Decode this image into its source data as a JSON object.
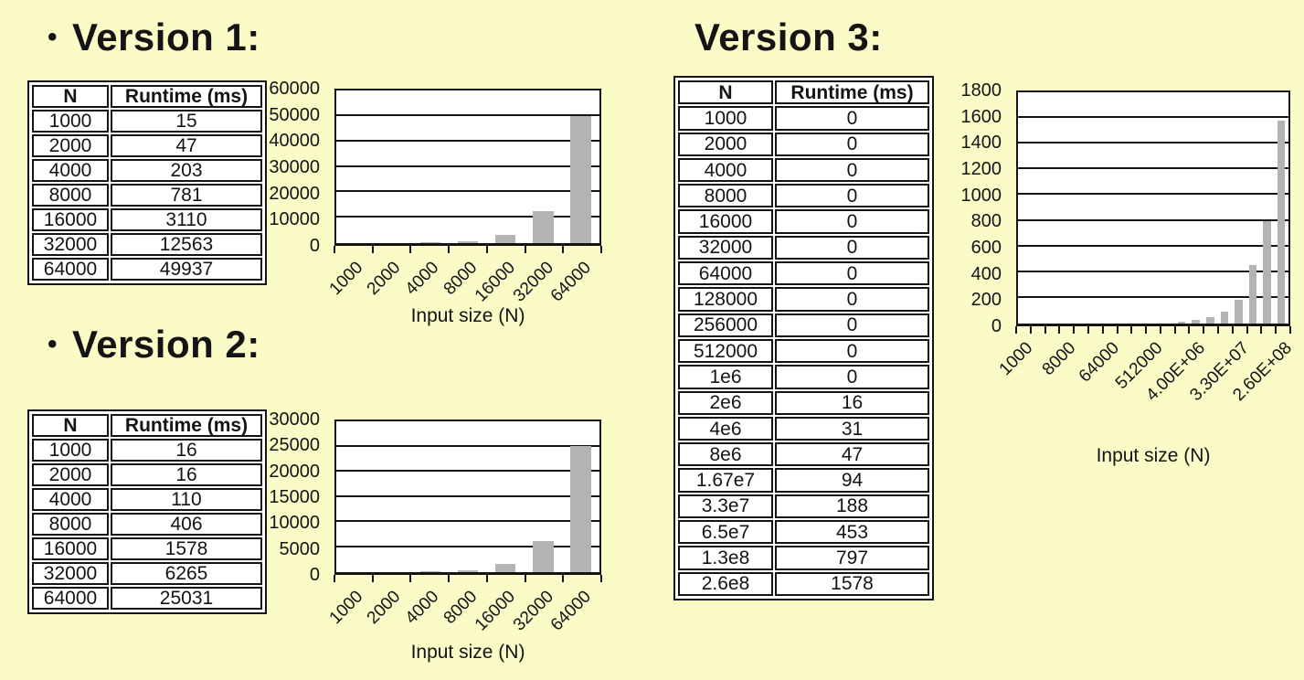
{
  "page": {
    "background_color": "#FBFBC8",
    "bar_color": "#b3b3b3",
    "line_color": "#141414"
  },
  "sections": [
    {
      "bullet": "•",
      "title": "Version 1:"
    },
    {
      "bullet": "•",
      "title": "Version 2:"
    },
    {
      "bullet": "",
      "title": "Version 3:"
    }
  ],
  "tables": [
    {
      "headers": [
        "N",
        "Runtime (ms)"
      ],
      "rows": [
        [
          "1000",
          "15"
        ],
        [
          "2000",
          "47"
        ],
        [
          "4000",
          "203"
        ],
        [
          "8000",
          "781"
        ],
        [
          "16000",
          "3110"
        ],
        [
          "32000",
          "12563"
        ],
        [
          "64000",
          "49937"
        ]
      ]
    },
    {
      "headers": [
        "N",
        "Runtime (ms)"
      ],
      "rows": [
        [
          "1000",
          "16"
        ],
        [
          "2000",
          "16"
        ],
        [
          "4000",
          "110"
        ],
        [
          "8000",
          "406"
        ],
        [
          "16000",
          "1578"
        ],
        [
          "32000",
          "6265"
        ],
        [
          "64000",
          "25031"
        ]
      ]
    },
    {
      "headers": [
        "N",
        "Runtime (ms)"
      ],
      "rows": [
        [
          "1000",
          "0"
        ],
        [
          "2000",
          "0"
        ],
        [
          "4000",
          "0"
        ],
        [
          "8000",
          "0"
        ],
        [
          "16000",
          "0"
        ],
        [
          "32000",
          "0"
        ],
        [
          "64000",
          "0"
        ],
        [
          "128000",
          "0"
        ],
        [
          "256000",
          "0"
        ],
        [
          "512000",
          "0"
        ],
        [
          "1e6",
          "0"
        ],
        [
          "2e6",
          "16"
        ],
        [
          "4e6",
          "31"
        ],
        [
          "8e6",
          "47"
        ],
        [
          "1.67e7",
          "94"
        ],
        [
          "3.3e7",
          "188"
        ],
        [
          "6.5e7",
          "453"
        ],
        [
          "1.3e8",
          "797"
        ],
        [
          "2.6e8",
          "1578"
        ]
      ]
    }
  ],
  "chart_data": [
    {
      "type": "bar",
      "title": "",
      "categories": [
        "1000",
        "2000",
        "4000",
        "8000",
        "16000",
        "32000",
        "64000"
      ],
      "values": [
        15,
        47,
        203,
        781,
        3110,
        12563,
        49937
      ],
      "xlabel": "Input size (N)",
      "ylabel": "",
      "ylim": [
        0,
        60000
      ],
      "ytick_step": 10000,
      "label_every": 1,
      "grid": true,
      "legend": false,
      "bar_color": "#b3b3b3"
    },
    {
      "type": "bar",
      "title": "",
      "categories": [
        "1000",
        "2000",
        "4000",
        "8000",
        "16000",
        "32000",
        "64000"
      ],
      "values": [
        16,
        16,
        110,
        406,
        1578,
        6265,
        25031
      ],
      "xlabel": "Input size (N)",
      "ylabel": "",
      "ylim": [
        0,
        30000
      ],
      "ytick_step": 5000,
      "label_every": 1,
      "grid": true,
      "legend": false,
      "bar_color": "#b3b3b3"
    },
    {
      "type": "bar",
      "title": "",
      "categories": [
        "1000",
        "2000",
        "4000",
        "8000",
        "16000",
        "32000",
        "64000",
        "128000",
        "256000",
        "512000",
        "1e6",
        "2e6",
        "4e6",
        "8e6",
        "1.67e7",
        "3.3e7",
        "6.5e7",
        "1.3e8",
        "2.6e8"
      ],
      "values": [
        0,
        0,
        0,
        0,
        0,
        0,
        0,
        0,
        0,
        0,
        0,
        16,
        31,
        47,
        94,
        188,
        453,
        797,
        1578
      ],
      "xtick_labels": [
        "1000",
        "8000",
        "64000",
        "512000",
        "4.00E+06",
        "3.30E+07",
        "2.60E+08"
      ],
      "xlabel": "Input size (N)",
      "ylabel": "",
      "ylim": [
        0,
        1800
      ],
      "ytick_step": 200,
      "label_every": 3,
      "grid": true,
      "legend": false,
      "bar_color": "#b3b3b3"
    }
  ]
}
